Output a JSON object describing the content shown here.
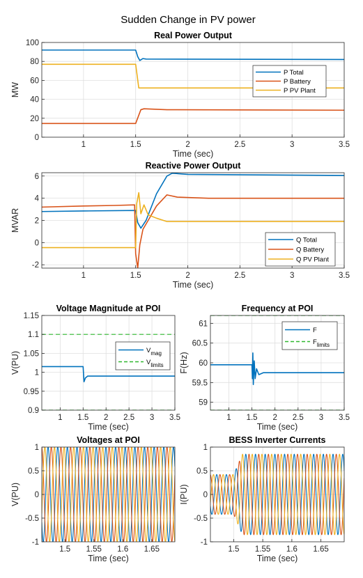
{
  "suptitle": "Sudden Change in PV power",
  "colors": {
    "blue": "#0072BD",
    "orange": "#D95319",
    "yellow": "#EDB120",
    "green": "#2FB82F"
  },
  "chart_data": [
    {
      "id": "real",
      "type": "line",
      "title": "Real Power Output",
      "xlabel": "Time (sec)",
      "ylabel": "MW",
      "xlim": [
        0.6,
        3.5
      ],
      "ylim": [
        0,
        100
      ],
      "xticks": [
        "1",
        "1.5",
        "2",
        "2.5",
        "3",
        "3.5"
      ],
      "yticks": [
        "0",
        "20",
        "40",
        "60",
        "80",
        "100"
      ],
      "grid": true,
      "legend_location": "right",
      "series": [
        {
          "name": "P Total",
          "color": "blue",
          "points": [
            [
              0.6,
              92
            ],
            [
              1.5,
              92
            ],
            [
              1.52,
              85
            ],
            [
              1.54,
              81
            ],
            [
              1.57,
              83
            ],
            [
              1.6,
              82.5
            ],
            [
              3.5,
              82
            ]
          ]
        },
        {
          "name": "P Battery",
          "color": "orange",
          "points": [
            [
              0.6,
              14.5
            ],
            [
              1.5,
              14.5
            ],
            [
              1.55,
              29
            ],
            [
              1.58,
              30
            ],
            [
              1.8,
              29
            ],
            [
              3.5,
              28.5
            ]
          ]
        },
        {
          "name": "P PV Plant",
          "color": "yellow",
          "points": [
            [
              0.6,
              77
            ],
            [
              1.5,
              77
            ],
            [
              1.53,
              52
            ],
            [
              3.5,
              52
            ]
          ]
        }
      ]
    },
    {
      "id": "reactive",
      "type": "line",
      "title": "Reactive Power Output",
      "xlabel": "Time (sec)",
      "ylabel": "MVAR",
      "xlim": [
        0.6,
        3.5
      ],
      "ylim": [
        -2.3,
        6.3
      ],
      "xticks": [
        "1",
        "1.5",
        "2",
        "2.5",
        "3",
        "3.5"
      ],
      "yticks": [
        "-2",
        "0",
        "2",
        "4",
        "6"
      ],
      "grid": true,
      "legend_location": "bottom-right",
      "series": [
        {
          "name": "Q Total",
          "color": "blue",
          "points": [
            [
              0.6,
              2.8
            ],
            [
              1.0,
              2.85
            ],
            [
              1.5,
              2.9
            ],
            [
              1.52,
              1.8
            ],
            [
              1.55,
              1.3
            ],
            [
              1.6,
              2.0
            ],
            [
              1.7,
              4.4
            ],
            [
              1.8,
              6.0
            ],
            [
              1.85,
              6.25
            ],
            [
              2.0,
              6.15
            ],
            [
              3.5,
              6.05
            ]
          ]
        },
        {
          "name": "Q Battery",
          "color": "orange",
          "points": [
            [
              0.6,
              3.2
            ],
            [
              1.0,
              3.3
            ],
            [
              1.3,
              3.35
            ],
            [
              1.49,
              3.4
            ],
            [
              1.5,
              -1.0
            ],
            [
              1.52,
              -2.3
            ],
            [
              1.54,
              -0.2
            ],
            [
              1.57,
              1.2
            ],
            [
              1.62,
              2.0
            ],
            [
              1.7,
              3.3
            ],
            [
              1.8,
              4.3
            ],
            [
              1.9,
              4.1
            ],
            [
              2.2,
              4.0
            ],
            [
              3.5,
              4.0
            ]
          ]
        },
        {
          "name": "Q PV Plant",
          "color": "yellow",
          "points": [
            [
              0.6,
              -0.45
            ],
            [
              1.5,
              -0.45
            ],
            [
              1.51,
              3.5
            ],
            [
              1.53,
              4.5
            ],
            [
              1.55,
              2.6
            ],
            [
              1.58,
              3.4
            ],
            [
              1.62,
              2.5
            ],
            [
              1.7,
              2.2
            ],
            [
              1.8,
              1.9
            ],
            [
              3.5,
              1.9
            ]
          ]
        }
      ]
    },
    {
      "id": "voltage",
      "type": "line",
      "title": "Voltage Magnitude at POI",
      "xlabel": "Time (sec)",
      "ylabel": "V(PU)",
      "xlim": [
        0.6,
        3.5
      ],
      "ylim": [
        0.9,
        1.15
      ],
      "xticks": [
        "1",
        "1.5",
        "2",
        "2.5",
        "3",
        "3.5"
      ],
      "yticks": [
        "0.9",
        "0.95",
        "1",
        "1.05",
        "1.1",
        "1.15"
      ],
      "grid": true,
      "legend_location": "right",
      "series": [
        {
          "name": "V",
          "name_sub": "mag",
          "color": "blue",
          "points": [
            [
              0.6,
              1.015
            ],
            [
              1.5,
              1.015
            ],
            [
              1.52,
              0.975
            ],
            [
              1.55,
              0.985
            ],
            [
              1.6,
              0.99
            ],
            [
              3.5,
              0.99
            ]
          ]
        },
        {
          "name": "V",
          "name_sub": "limits",
          "color": "green",
          "dashed": true,
          "hlines": [
            0.9,
            1.1
          ]
        }
      ]
    },
    {
      "id": "frequency",
      "type": "line",
      "title": "Frequency at POI",
      "xlabel": "Time (sec)",
      "ylabel": "F(Hz)",
      "xlim": [
        0.6,
        3.5
      ],
      "ylim": [
        58.8,
        61.2
      ],
      "xticks": [
        "1",
        "1.5",
        "2",
        "2.5",
        "3",
        "3.5"
      ],
      "yticks": [
        "59",
        "59.5",
        "60",
        "60.5",
        "61"
      ],
      "grid": true,
      "legend_location": "top-right",
      "series": [
        {
          "name": "F",
          "color": "blue",
          "points": [
            [
              0.6,
              59.95
            ],
            [
              1.5,
              59.95
            ],
            [
              1.51,
              59.6
            ],
            [
              1.52,
              60.25
            ],
            [
              1.53,
              59.45
            ],
            [
              1.55,
              60.05
            ],
            [
              1.57,
              59.6
            ],
            [
              1.6,
              59.85
            ],
            [
              1.65,
              59.7
            ],
            [
              1.75,
              59.75
            ],
            [
              3.5,
              59.75
            ]
          ]
        },
        {
          "name": "F",
          "name_sub": "limits",
          "color": "green",
          "dashed": true,
          "hlines": [
            58.8,
            61.2
          ]
        }
      ]
    },
    {
      "id": "voltages",
      "type": "line",
      "title": "Voltages at POI",
      "xlabel": "Time (sec)",
      "ylabel": "V(PU)",
      "xlim": [
        1.46,
        1.69
      ],
      "ylim": [
        -1,
        1
      ],
      "xticks": [
        "1.5",
        "1.55",
        "1.6",
        "1.65"
      ],
      "yticks": [
        "-1",
        "-0.5",
        "0",
        "0.5",
        "1"
      ],
      "grid": true,
      "waveform": {
        "frequency_hz": 60,
        "phases": 3,
        "amplitude_before": 1.0,
        "amplitude_after": 1.0,
        "switch_time": 1.5
      },
      "series": [
        {
          "color": "blue"
        },
        {
          "color": "orange"
        },
        {
          "color": "yellow"
        }
      ]
    },
    {
      "id": "currents",
      "type": "line",
      "title": "BESS Inverter Currents",
      "xlabel": "Time (sec)",
      "ylabel": "I(PU)",
      "xlim": [
        1.46,
        1.69
      ],
      "ylim": [
        -1,
        1
      ],
      "xticks": [
        "1.5",
        "1.55",
        "1.6",
        "1.65"
      ],
      "yticks": [
        "-1",
        "-0.5",
        "0",
        "0.5",
        "1"
      ],
      "grid": true,
      "waveform": {
        "frequency_hz": 60,
        "phases": 3,
        "amplitude_before": 0.42,
        "amplitude_after": 0.85,
        "switch_time": 1.5
      },
      "series": [
        {
          "color": "blue"
        },
        {
          "color": "orange"
        },
        {
          "color": "yellow"
        }
      ]
    }
  ]
}
